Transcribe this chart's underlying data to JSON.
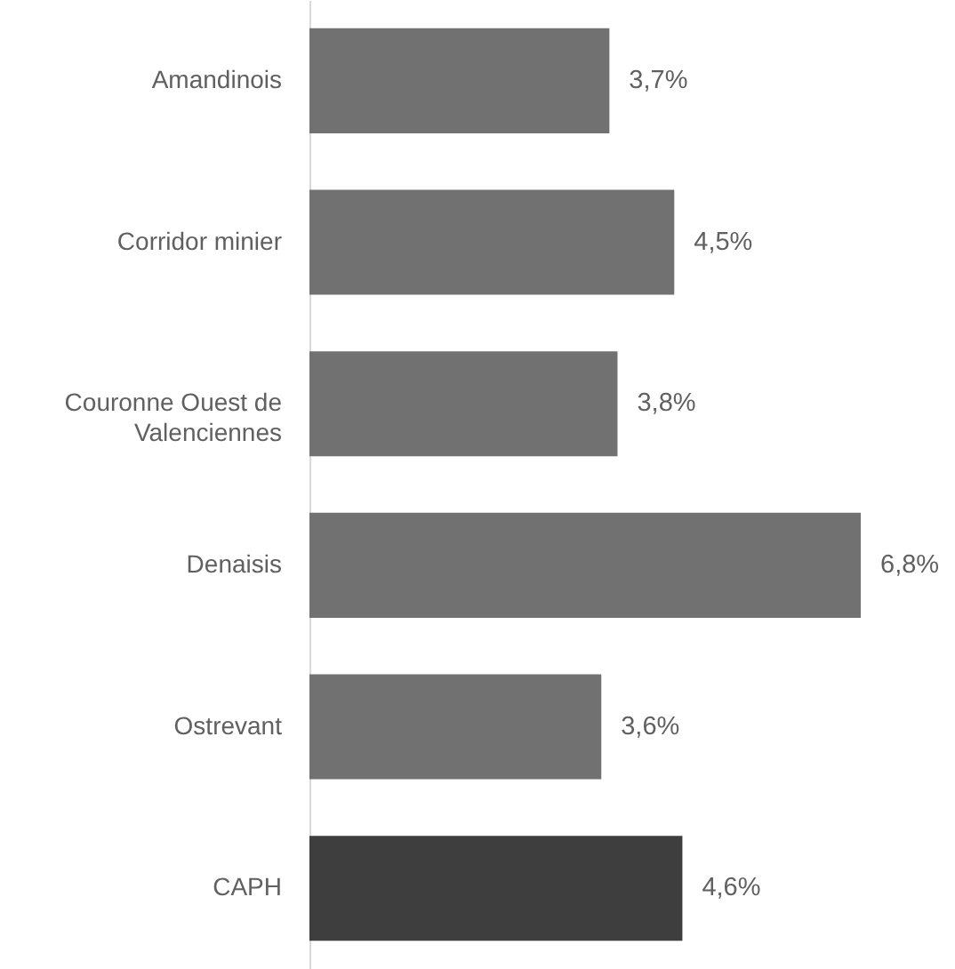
{
  "chart_data": {
    "type": "bar",
    "orientation": "horizontal",
    "categories": [
      "Amandinois",
      "Corridor minier",
      "Couronne Ouest de Valenciennes",
      "Denaisis",
      "Ostrevant",
      "CAPH"
    ],
    "values": [
      3.7,
      4.5,
      3.8,
      6.8,
      3.6,
      4.6
    ],
    "value_labels": [
      "3,7%",
      "4,5%",
      "3,8%",
      "6,8%",
      "3,6%",
      "4,6%"
    ],
    "colors": [
      "#717171",
      "#717171",
      "#717171",
      "#717171",
      "#717171",
      "#3e3e3e"
    ],
    "tick_labels": "y"
  }
}
